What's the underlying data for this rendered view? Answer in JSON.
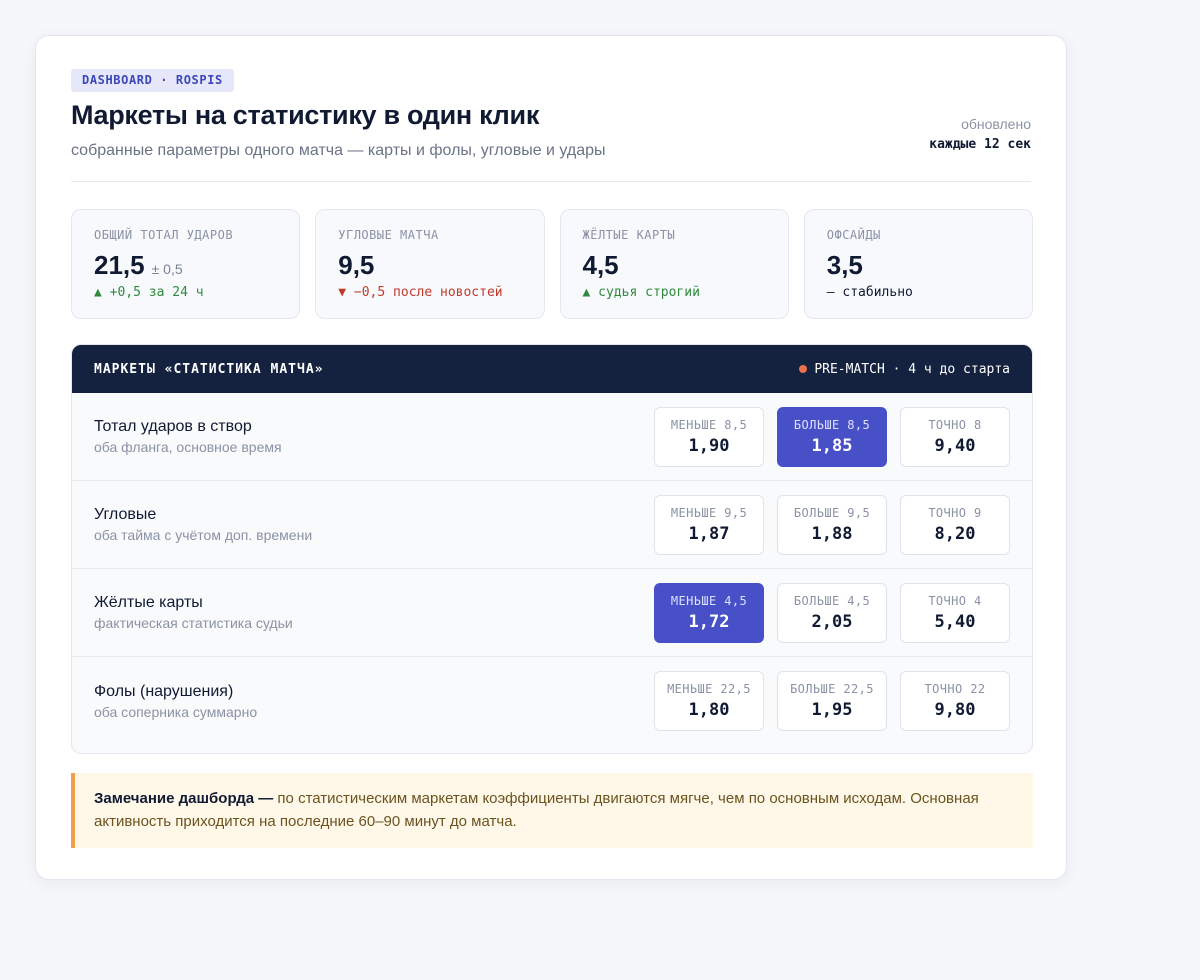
{
  "header": {
    "tag": "DASHBOARD · ROSPIS",
    "title": "Маркеты на статистику в один клик",
    "subtitle": "собранные параметры одного матча — карты и фолы, угловые и удары",
    "updated_label": "обновлено",
    "updated_value": "каждые 12 сек"
  },
  "kpis": [
    {
      "label": "ОБЩИЙ ТОТАЛ УДАРОВ",
      "value": "21,5",
      "extra": "± 0,5",
      "delta": "▲ +0,5 за 24 ч",
      "trend": "up"
    },
    {
      "label": "УГЛОВЫЕ МАТЧА",
      "value": "9,5",
      "extra": "",
      "delta": "▼ −0,5 после новостей",
      "trend": "down"
    },
    {
      "label": "ЖЁЛТЫЕ КАРТЫ",
      "value": "4,5",
      "extra": "",
      "delta": "▲ судья строгий",
      "trend": "up"
    },
    {
      "label": "ОФСАЙДЫ",
      "value": "3,5",
      "extra": "",
      "delta": "— стабильно",
      "trend": "flat"
    }
  ],
  "markets": {
    "title": "МАРКЕТЫ «СТАТИСТИКА МАТЧА»",
    "status": "PRE-MATCH · 4 ч до старта",
    "rows": [
      {
        "name": "Тотал ударов в створ",
        "desc": "оба фланга, основное время",
        "odds": [
          {
            "label": "МЕНЬШЕ 8,5",
            "value": "1,90"
          },
          {
            "label": "БОЛЬШЕ 8,5",
            "value": "1,85"
          },
          {
            "label": "ТОЧНО 8",
            "value": "9,40"
          }
        ]
      },
      {
        "name": "Угловые",
        "desc": "оба тайма с учётом доп. времени",
        "odds": [
          {
            "label": "МЕНЬШЕ 9,5",
            "value": "1,87"
          },
          {
            "label": "БОЛЬШЕ 9,5",
            "value": "1,88"
          },
          {
            "label": "ТОЧНО 9",
            "value": "8,20"
          }
        ]
      },
      {
        "name": "Жёлтые карты",
        "desc": "фактическая статистика судьи",
        "odds": [
          {
            "label": "МЕНЬШЕ 4,5",
            "value": "1,72"
          },
          {
            "label": "БОЛЬШЕ 4,5",
            "value": "2,05"
          },
          {
            "label": "ТОЧНО 4",
            "value": "5,40"
          }
        ]
      },
      {
        "name": "Фолы (нарушения)",
        "desc": "оба соперника суммарно",
        "odds": [
          {
            "label": "МЕНЬШЕ 22,5",
            "value": "1,80"
          },
          {
            "label": "БОЛЬШЕ 22,5",
            "value": "1,95"
          },
          {
            "label": "ТОЧНО 22",
            "value": "9,80"
          }
        ]
      }
    ]
  },
  "note": {
    "lead": "Замечание дашборда —",
    "text": " по статистическим маркетам коэффициенты двигаются мягче, чем по основным исходам. Основная активность приходится на последние 60–90 минут до матча."
  },
  "colors": {
    "accent": "#4750c6",
    "header_bg": "#14213f",
    "up": "#2f8a3d",
    "down": "#c0392b",
    "live_dot": "#e8734a",
    "note_border": "#f0a04b"
  },
  "icons": {
    "status": "live-dot-icon",
    "trend_up": "triangle-up-icon",
    "trend_down": "triangle-down-icon"
  }
}
